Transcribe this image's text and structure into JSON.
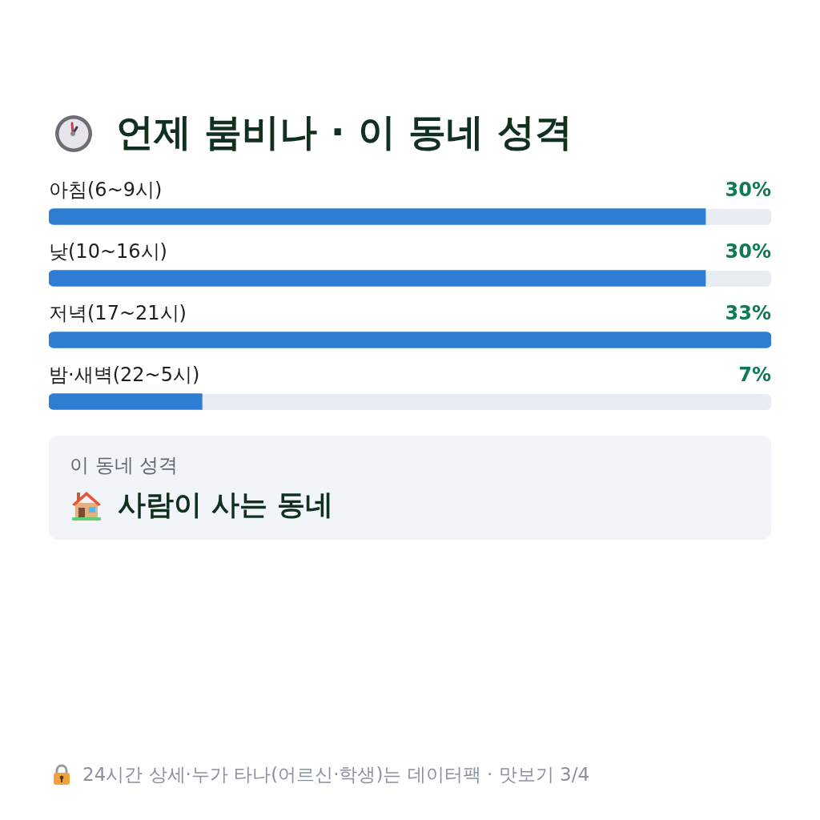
{
  "chart_data": {
    "type": "bar",
    "orientation": "horizontal",
    "title": "언제 붐비나 · 이 동네 성격",
    "categories": [
      "아침(6~9시)",
      "낮(10~16시)",
      "저녁(17~21시)",
      "밤·새벽(22~5시)"
    ],
    "values": [
      30,
      30,
      33,
      7
    ],
    "color": "#2d7dd2",
    "xlim": [
      0,
      33
    ],
    "value_labels": [
      "30%",
      "30%",
      "33%",
      "7%"
    ],
    "annotations": [
      "이 동네 성격",
      "사람이 사는 동네",
      "24시간 상세·누가 타나(어르신·학생)는 데이터팩 · 맛보기 3/4"
    ]
  }
}
